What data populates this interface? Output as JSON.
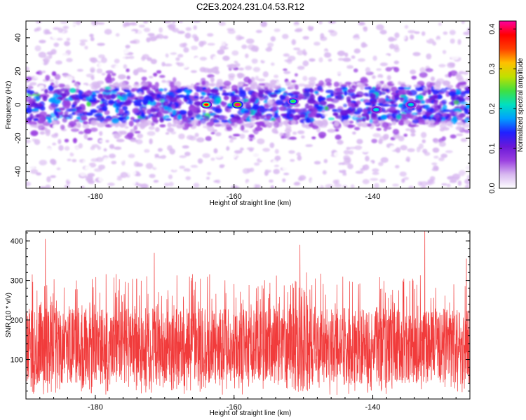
{
  "chart_data": [
    {
      "type": "heatmap",
      "title": "C2E3.2024.231.04.53.R12",
      "xlabel": "Height of straight line (km)",
      "ylabel": "Frequency (Hz)",
      "xlim": [
        -190,
        -126
      ],
      "ylim": [
        -50,
        50
      ],
      "x_ticks": [
        -180,
        -160,
        -140
      ],
      "y_ticks": [
        -40,
        -20,
        0,
        20,
        40
      ],
      "colorbar": {
        "label": "Normalized spectral amplitude",
        "range": [
          0.0,
          0.42
        ],
        "ticks": [
          0.0,
          0.1,
          0.2,
          0.3,
          0.4
        ],
        "colors": [
          "#ffffff",
          "#d8b8f0",
          "#9a40e0",
          "#6a18d8",
          "#2020ff",
          "#00a0ff",
          "#00e0c0",
          "#40e040",
          "#c0e000",
          "#ffc000",
          "#ff4000",
          "#ff0000",
          "#ff00a0"
        ]
      },
      "band_center_hz": 0,
      "band_halfwidth_hz": 10,
      "peaks": [
        {
          "x": -164.0,
          "y": 0,
          "value": 0.4
        },
        {
          "x": -159.5,
          "y": 0,
          "value": 0.42
        },
        {
          "x": -151.5,
          "y": 2,
          "value": 0.25
        },
        {
          "x": -139.5,
          "y": -3,
          "value": 0.22
        },
        {
          "x": -134.5,
          "y": 0,
          "value": 0.2
        }
      ]
    },
    {
      "type": "line",
      "xlabel": "Height of straight line (km)",
      "ylabel": "SNR (10 * v/v)",
      "xlim": [
        -190,
        -126
      ],
      "ylim": [
        0,
        425
      ],
      "x_ticks": [
        -180,
        -160,
        -140
      ],
      "y_ticks": [
        100,
        200,
        300,
        400
      ],
      "line_color": "#f03030",
      "typical_range": [
        40,
        230
      ],
      "notable_peaks": [
        {
          "x": -187.2,
          "y": 405
        },
        {
          "x": -171.5,
          "y": 370
        },
        {
          "x": -150.5,
          "y": 390
        },
        {
          "x": -132.5,
          "y": 425
        },
        {
          "x": -126.5,
          "y": 355
        }
      ]
    }
  ]
}
